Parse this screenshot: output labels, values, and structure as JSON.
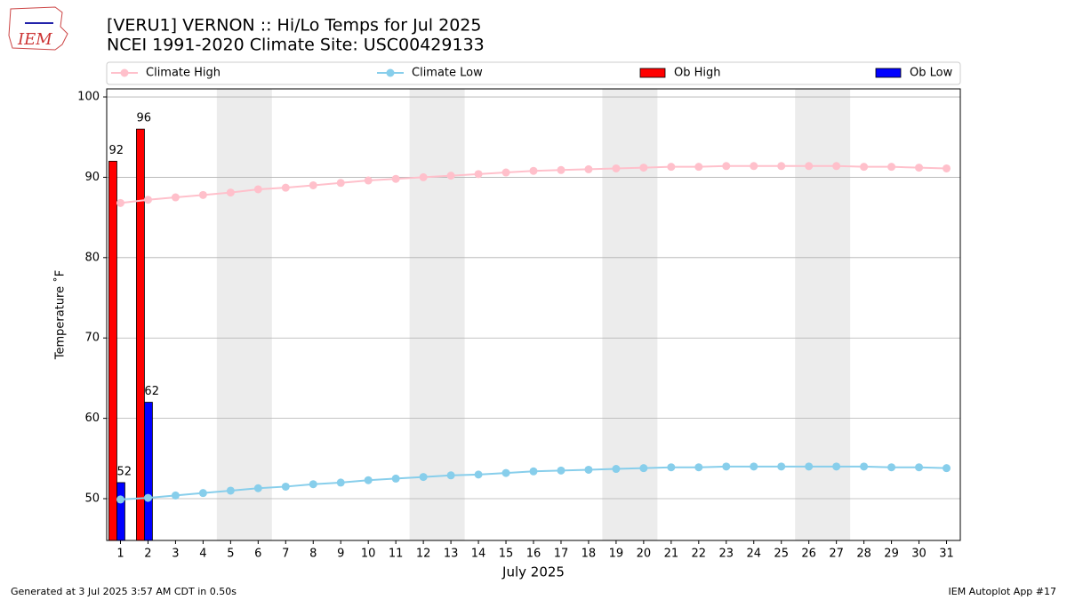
{
  "chart_data": {
    "type": "bar",
    "title": "[VERU1] VERNON :: Hi/Lo Temps for Jul 2025",
    "subtitle": "NCEI 1991-2020 Climate Site: USC00429133",
    "xlabel": "July 2025",
    "ylabel": "Temperature ˚F",
    "x": [
      1,
      2,
      3,
      4,
      5,
      6,
      7,
      8,
      9,
      10,
      11,
      12,
      13,
      14,
      15,
      16,
      17,
      18,
      19,
      20,
      21,
      22,
      23,
      24,
      25,
      26,
      27,
      28,
      29,
      30,
      31
    ],
    "xlim": [
      0.5,
      31.5
    ],
    "ylim": [
      44.8,
      101
    ],
    "yticks": [
      50,
      60,
      70,
      80,
      90,
      100
    ],
    "grid": true,
    "shaded_ranges": [
      [
        4.5,
        6.5
      ],
      [
        11.5,
        13.5
      ],
      [
        18.5,
        20.5
      ],
      [
        25.5,
        27.5
      ]
    ],
    "series": [
      {
        "name": "Climate High",
        "type": "line",
        "color": "#ffc0cb",
        "values": [
          86.8,
          87.2,
          87.5,
          87.8,
          88.1,
          88.5,
          88.7,
          89.0,
          89.3,
          89.6,
          89.8,
          90.0,
          90.2,
          90.4,
          90.6,
          90.8,
          90.9,
          91.0,
          91.1,
          91.2,
          91.3,
          91.3,
          91.4,
          91.4,
          91.4,
          91.4,
          91.4,
          91.3,
          91.3,
          91.2,
          91.1
        ]
      },
      {
        "name": "Climate Low",
        "type": "line",
        "color": "#87ceeb",
        "values": [
          49.9,
          50.1,
          50.4,
          50.7,
          51.0,
          51.3,
          51.5,
          51.8,
          52.0,
          52.3,
          52.5,
          52.7,
          52.9,
          53.0,
          53.2,
          53.4,
          53.5,
          53.6,
          53.7,
          53.8,
          53.9,
          53.9,
          54.0,
          54.0,
          54.0,
          54.0,
          54.0,
          54.0,
          53.9,
          53.9,
          53.8
        ]
      },
      {
        "name": "Ob High",
        "type": "bar",
        "color": "#ff0000",
        "values": [
          92,
          96,
          null,
          null,
          null,
          null,
          null,
          null,
          null,
          null,
          null,
          null,
          null,
          null,
          null,
          null,
          null,
          null,
          null,
          null,
          null,
          null,
          null,
          null,
          null,
          null,
          null,
          null,
          null,
          null,
          null
        ]
      },
      {
        "name": "Ob Low",
        "type": "bar",
        "color": "#0000ff",
        "values": [
          52,
          62,
          null,
          null,
          null,
          null,
          null,
          null,
          null,
          null,
          null,
          null,
          null,
          null,
          null,
          null,
          null,
          null,
          null,
          null,
          null,
          null,
          null,
          null,
          null,
          null,
          null,
          null,
          null,
          null,
          null
        ]
      }
    ]
  },
  "logo": "IEM",
  "footer_left": "Generated at 3 Jul 2025 3:57 AM CDT in 0.50s",
  "footer_right": "IEM Autoplot App #17"
}
